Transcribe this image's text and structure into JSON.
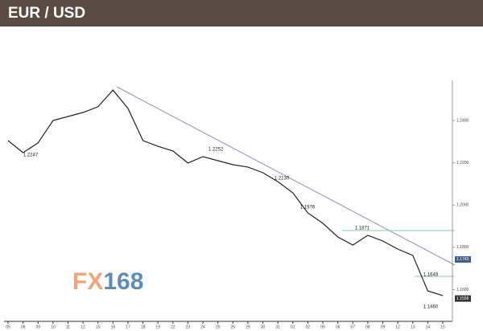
{
  "chart_data": {
    "type": "line",
    "title": "EUR / USD",
    "categories": [
      "05",
      "06",
      "09",
      "10",
      "11",
      "12",
      "15",
      "16",
      "17",
      "18",
      "19",
      "22",
      "23",
      "24",
      "25",
      "26",
      "29",
      "30",
      "31",
      "01",
      "02",
      "05",
      "06",
      "07",
      "08",
      "09",
      "12",
      "13",
      "14",
      "15"
    ],
    "series": [
      {
        "name": "EUR/USD",
        "color": "#222222",
        "values": [
          1.2305,
          1.2248,
          1.2294,
          1.24,
          1.2419,
          1.2438,
          1.2465,
          1.2544,
          1.2457,
          1.2305,
          1.2278,
          1.2256,
          1.2199,
          1.2229,
          1.221,
          1.2191,
          1.218,
          1.2153,
          1.2111,
          1.2058,
          1.1963,
          1.1914,
          1.1849,
          1.1811,
          1.1857,
          1.183,
          1.1792,
          1.1762,
          1.1594,
          1.1572
        ]
      }
    ],
    "ylim": [
      1.145,
      1.259
    ],
    "yticks": [
      {
        "value": 1.24,
        "label": "1.2400"
      },
      {
        "value": 1.22,
        "label": "1.2200"
      },
      {
        "value": 1.2,
        "label": "1.2000"
      },
      {
        "value": 1.18,
        "label": "1.1800"
      },
      {
        "value": 1.16,
        "label": "1.1600"
      }
    ],
    "price_tags": [
      {
        "value": 1.1743,
        "label": "1.1743"
      },
      {
        "value": 1.1558,
        "label": "1.1558"
      }
    ],
    "annotations": [
      "1.2247",
      "1.2252",
      "1.2130",
      "1.1976",
      "1.1871",
      "1.1649",
      "1.1460"
    ],
    "watermark": [
      "FX",
      "168"
    ],
    "grid": false
  }
}
